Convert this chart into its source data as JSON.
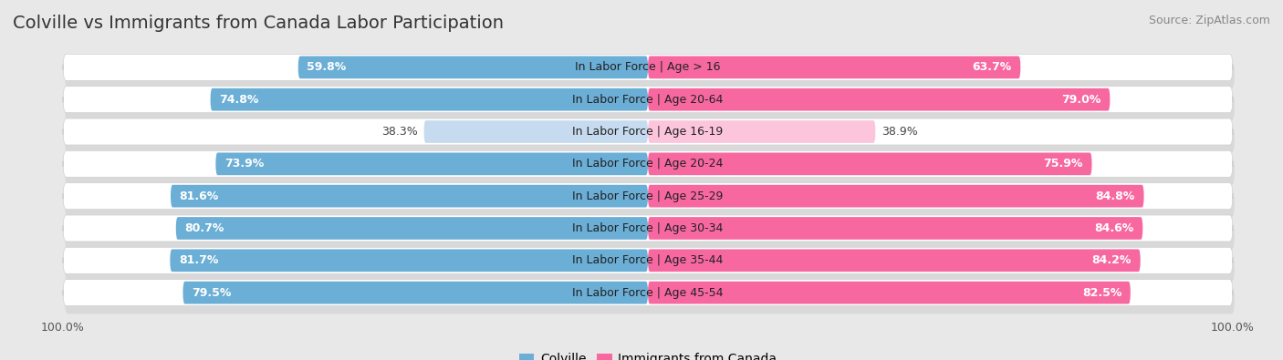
{
  "title": "Colville vs Immigrants from Canada Labor Participation",
  "source": "Source: ZipAtlas.com",
  "categories": [
    "In Labor Force | Age > 16",
    "In Labor Force | Age 20-64",
    "In Labor Force | Age 16-19",
    "In Labor Force | Age 20-24",
    "In Labor Force | Age 25-29",
    "In Labor Force | Age 30-34",
    "In Labor Force | Age 35-44",
    "In Labor Force | Age 45-54"
  ],
  "colville_values": [
    59.8,
    74.8,
    38.3,
    73.9,
    81.6,
    80.7,
    81.7,
    79.5
  ],
  "canada_values": [
    63.7,
    79.0,
    38.9,
    75.9,
    84.8,
    84.6,
    84.2,
    82.5
  ],
  "colville_color": "#6baed6",
  "canada_color": "#f768a1",
  "colville_color_light": "#c6dbef",
  "canada_color_light": "#fcc5dc",
  "row_bg_color": "#ffffff",
  "outer_bg_color": "#e8e8e8",
  "row_border_color": "#d0d0d0",
  "title_fontsize": 14,
  "source_fontsize": 9,
  "value_fontsize": 9,
  "cat_fontsize": 9,
  "bar_height": 0.7,
  "max_value": 100.0,
  "legend_label_colville": "Colville",
  "legend_label_canada": "Immigrants from Canada",
  "axis_tick_fontsize": 9
}
